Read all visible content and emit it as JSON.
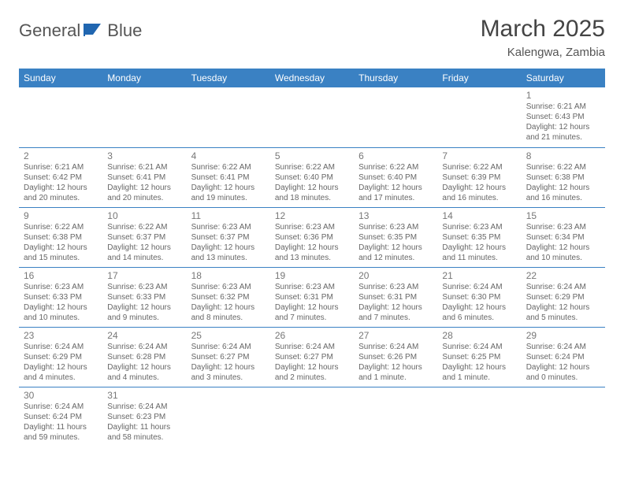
{
  "brand": {
    "part1": "General",
    "part2": "Blue"
  },
  "title": "March 2025",
  "location": "Kalengwa, Zambia",
  "colors": {
    "header_bg": "#3a81c3",
    "header_text": "#ffffff",
    "border": "#3a81c3",
    "text": "#666666",
    "daynum": "#777777",
    "logo_blue": "#2066b0"
  },
  "weekdays": [
    "Sunday",
    "Monday",
    "Tuesday",
    "Wednesday",
    "Thursday",
    "Friday",
    "Saturday"
  ],
  "weeks": [
    [
      null,
      null,
      null,
      null,
      null,
      null,
      {
        "n": "1",
        "sr": "Sunrise: 6:21 AM",
        "ss": "Sunset: 6:43 PM",
        "dl1": "Daylight: 12 hours",
        "dl2": "and 21 minutes."
      }
    ],
    [
      {
        "n": "2",
        "sr": "Sunrise: 6:21 AM",
        "ss": "Sunset: 6:42 PM",
        "dl1": "Daylight: 12 hours",
        "dl2": "and 20 minutes."
      },
      {
        "n": "3",
        "sr": "Sunrise: 6:21 AM",
        "ss": "Sunset: 6:41 PM",
        "dl1": "Daylight: 12 hours",
        "dl2": "and 20 minutes."
      },
      {
        "n": "4",
        "sr": "Sunrise: 6:22 AM",
        "ss": "Sunset: 6:41 PM",
        "dl1": "Daylight: 12 hours",
        "dl2": "and 19 minutes."
      },
      {
        "n": "5",
        "sr": "Sunrise: 6:22 AM",
        "ss": "Sunset: 6:40 PM",
        "dl1": "Daylight: 12 hours",
        "dl2": "and 18 minutes."
      },
      {
        "n": "6",
        "sr": "Sunrise: 6:22 AM",
        "ss": "Sunset: 6:40 PM",
        "dl1": "Daylight: 12 hours",
        "dl2": "and 17 minutes."
      },
      {
        "n": "7",
        "sr": "Sunrise: 6:22 AM",
        "ss": "Sunset: 6:39 PM",
        "dl1": "Daylight: 12 hours",
        "dl2": "and 16 minutes."
      },
      {
        "n": "8",
        "sr": "Sunrise: 6:22 AM",
        "ss": "Sunset: 6:38 PM",
        "dl1": "Daylight: 12 hours",
        "dl2": "and 16 minutes."
      }
    ],
    [
      {
        "n": "9",
        "sr": "Sunrise: 6:22 AM",
        "ss": "Sunset: 6:38 PM",
        "dl1": "Daylight: 12 hours",
        "dl2": "and 15 minutes."
      },
      {
        "n": "10",
        "sr": "Sunrise: 6:22 AM",
        "ss": "Sunset: 6:37 PM",
        "dl1": "Daylight: 12 hours",
        "dl2": "and 14 minutes."
      },
      {
        "n": "11",
        "sr": "Sunrise: 6:23 AM",
        "ss": "Sunset: 6:37 PM",
        "dl1": "Daylight: 12 hours",
        "dl2": "and 13 minutes."
      },
      {
        "n": "12",
        "sr": "Sunrise: 6:23 AM",
        "ss": "Sunset: 6:36 PM",
        "dl1": "Daylight: 12 hours",
        "dl2": "and 13 minutes."
      },
      {
        "n": "13",
        "sr": "Sunrise: 6:23 AM",
        "ss": "Sunset: 6:35 PM",
        "dl1": "Daylight: 12 hours",
        "dl2": "and 12 minutes."
      },
      {
        "n": "14",
        "sr": "Sunrise: 6:23 AM",
        "ss": "Sunset: 6:35 PM",
        "dl1": "Daylight: 12 hours",
        "dl2": "and 11 minutes."
      },
      {
        "n": "15",
        "sr": "Sunrise: 6:23 AM",
        "ss": "Sunset: 6:34 PM",
        "dl1": "Daylight: 12 hours",
        "dl2": "and 10 minutes."
      }
    ],
    [
      {
        "n": "16",
        "sr": "Sunrise: 6:23 AM",
        "ss": "Sunset: 6:33 PM",
        "dl1": "Daylight: 12 hours",
        "dl2": "and 10 minutes."
      },
      {
        "n": "17",
        "sr": "Sunrise: 6:23 AM",
        "ss": "Sunset: 6:33 PM",
        "dl1": "Daylight: 12 hours",
        "dl2": "and 9 minutes."
      },
      {
        "n": "18",
        "sr": "Sunrise: 6:23 AM",
        "ss": "Sunset: 6:32 PM",
        "dl1": "Daylight: 12 hours",
        "dl2": "and 8 minutes."
      },
      {
        "n": "19",
        "sr": "Sunrise: 6:23 AM",
        "ss": "Sunset: 6:31 PM",
        "dl1": "Daylight: 12 hours",
        "dl2": "and 7 minutes."
      },
      {
        "n": "20",
        "sr": "Sunrise: 6:23 AM",
        "ss": "Sunset: 6:31 PM",
        "dl1": "Daylight: 12 hours",
        "dl2": "and 7 minutes."
      },
      {
        "n": "21",
        "sr": "Sunrise: 6:24 AM",
        "ss": "Sunset: 6:30 PM",
        "dl1": "Daylight: 12 hours",
        "dl2": "and 6 minutes."
      },
      {
        "n": "22",
        "sr": "Sunrise: 6:24 AM",
        "ss": "Sunset: 6:29 PM",
        "dl1": "Daylight: 12 hours",
        "dl2": "and 5 minutes."
      }
    ],
    [
      {
        "n": "23",
        "sr": "Sunrise: 6:24 AM",
        "ss": "Sunset: 6:29 PM",
        "dl1": "Daylight: 12 hours",
        "dl2": "and 4 minutes."
      },
      {
        "n": "24",
        "sr": "Sunrise: 6:24 AM",
        "ss": "Sunset: 6:28 PM",
        "dl1": "Daylight: 12 hours",
        "dl2": "and 4 minutes."
      },
      {
        "n": "25",
        "sr": "Sunrise: 6:24 AM",
        "ss": "Sunset: 6:27 PM",
        "dl1": "Daylight: 12 hours",
        "dl2": "and 3 minutes."
      },
      {
        "n": "26",
        "sr": "Sunrise: 6:24 AM",
        "ss": "Sunset: 6:27 PM",
        "dl1": "Daylight: 12 hours",
        "dl2": "and 2 minutes."
      },
      {
        "n": "27",
        "sr": "Sunrise: 6:24 AM",
        "ss": "Sunset: 6:26 PM",
        "dl1": "Daylight: 12 hours",
        "dl2": "and 1 minute."
      },
      {
        "n": "28",
        "sr": "Sunrise: 6:24 AM",
        "ss": "Sunset: 6:25 PM",
        "dl1": "Daylight: 12 hours",
        "dl2": "and 1 minute."
      },
      {
        "n": "29",
        "sr": "Sunrise: 6:24 AM",
        "ss": "Sunset: 6:24 PM",
        "dl1": "Daylight: 12 hours",
        "dl2": "and 0 minutes."
      }
    ],
    [
      {
        "n": "30",
        "sr": "Sunrise: 6:24 AM",
        "ss": "Sunset: 6:24 PM",
        "dl1": "Daylight: 11 hours",
        "dl2": "and 59 minutes."
      },
      {
        "n": "31",
        "sr": "Sunrise: 6:24 AM",
        "ss": "Sunset: 6:23 PM",
        "dl1": "Daylight: 11 hours",
        "dl2": "and 58 minutes."
      },
      null,
      null,
      null,
      null,
      null
    ]
  ]
}
